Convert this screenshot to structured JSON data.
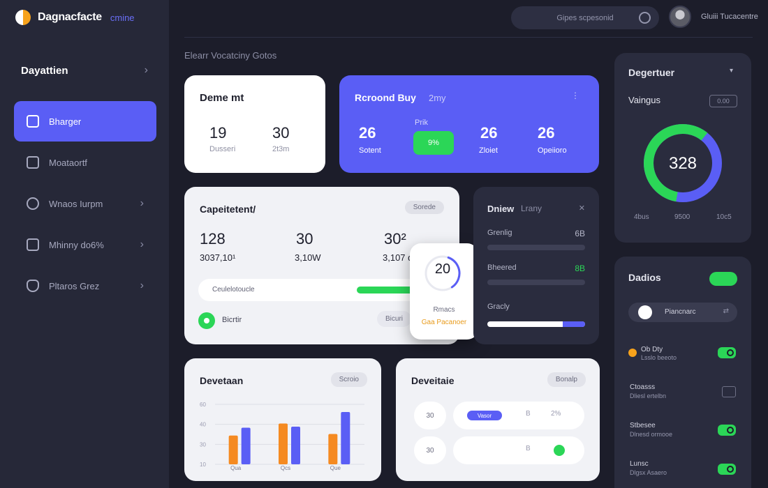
{
  "brand": {
    "name": "Dagnacfacte",
    "sub": "cmine"
  },
  "topbar": {
    "search_placeholder": "Gipes scpesonid",
    "user_name": "Gluiii Tucacentre"
  },
  "sidebar": {
    "section": "Dayattien",
    "items": [
      {
        "label": "Bharger",
        "icon": "wallet-icon",
        "active": true,
        "chevron": false
      },
      {
        "label": "Moataortf",
        "icon": "clipboard-icon",
        "active": false,
        "chevron": false
      },
      {
        "label": "Wnaos Iurpm",
        "icon": "globe-icon",
        "active": false,
        "chevron": true
      },
      {
        "label": "Mhinny do6%",
        "icon": "document-icon",
        "active": false,
        "chevron": true
      },
      {
        "label": "Pltaros Grez",
        "icon": "shield-icon",
        "active": false,
        "chevron": true
      }
    ]
  },
  "breadcrumb": "Elearr Vocatciny Gotos",
  "card_summary": {
    "title": "Deme mt",
    "v1": "19",
    "l1": "Dusseri",
    "v2": "30",
    "l2": "2t3m"
  },
  "card_revenue": {
    "title": "Rcroond Buy",
    "title_sub": "2my",
    "more": "⋮",
    "v1": "26",
    "l1": "Sotent",
    "mid_label": "Prik",
    "pill": "9%",
    "v2": "26",
    "l2": "Zloiet",
    "v3": "26",
    "l3": "Opeiioro"
  },
  "card_capacity": {
    "title": "Capeitetent/",
    "tag": "Sorede",
    "cols": [
      {
        "big": "128",
        "small": "3037,10¹"
      },
      {
        "big": "30",
        "small": "3,10W"
      },
      {
        "big": "30²",
        "small": "3,107 d"
      }
    ],
    "bar_label": "Ceulelotoucle",
    "bar_fill": 0.28,
    "status": "Bicrtir",
    "mini": "Bicuri"
  },
  "popover": {
    "value": "20",
    "line1": "Rmacs",
    "line2": "Gaa Pacanoer",
    "progress": 0.35
  },
  "card_rows": {
    "title": "Dniew",
    "title2": "Lrany",
    "close": "✕",
    "rows": [
      {
        "label": "Grenlig",
        "value": "6B",
        "green": false
      },
      {
        "label": "Bheered",
        "value": "8B",
        "green": true
      },
      {
        "label": "Gracly",
        "value": "",
        "green": false
      }
    ]
  },
  "card_donut": {
    "title": "Degertuer",
    "title_x": "▾",
    "subtitle": "Vaingus",
    "box": "0.00",
    "value": "328",
    "green_share": 0.58,
    "foot": [
      "4bus",
      "9500",
      "10c5"
    ]
  },
  "card_toggles": {
    "title": "Dadios",
    "seg_label": "Piancnarc",
    "seg_arrow": "⇄",
    "items": [
      {
        "t": "Ob Dty",
        "s": "Lsslo beeoto",
        "on": true,
        "coin": true
      },
      {
        "t": "Ctoasss",
        "s": "Dliesl ertelbn",
        "on": false,
        "coin": false
      },
      {
        "t": "Stbesee",
        "s": "Dlnesd ormooe",
        "on": true,
        "coin": false
      },
      {
        "t": "Lunsc",
        "s": "Dlgsx Asaero",
        "on": true,
        "coin": false
      }
    ]
  },
  "card_bars": {
    "title": "Devetaan",
    "tag": "Scroio",
    "chart_data": {
      "type": "bar",
      "categories": [
        "Qua",
        "Qcs",
        "Que"
      ],
      "series": [
        {
          "values": [
            55,
            78,
            58
          ]
        },
        {
          "values": [
            70,
            72,
            100
          ]
        }
      ],
      "ylim": [
        0,
        120
      ],
      "ytick_labels": [
        "60",
        "40",
        "30",
        "10"
      ],
      "colors": [
        "#f58a21",
        "#5a5ef5"
      ]
    }
  },
  "card_list": {
    "title": "Deveitaie",
    "tag": "Bonalp",
    "rows": [
      {
        "circle": "30",
        "pill": "Vasor",
        "k1": "B",
        "k2": "2%"
      },
      {
        "circle": "30",
        "pill": "",
        "k1": "B",
        "k2": ""
      }
    ]
  }
}
